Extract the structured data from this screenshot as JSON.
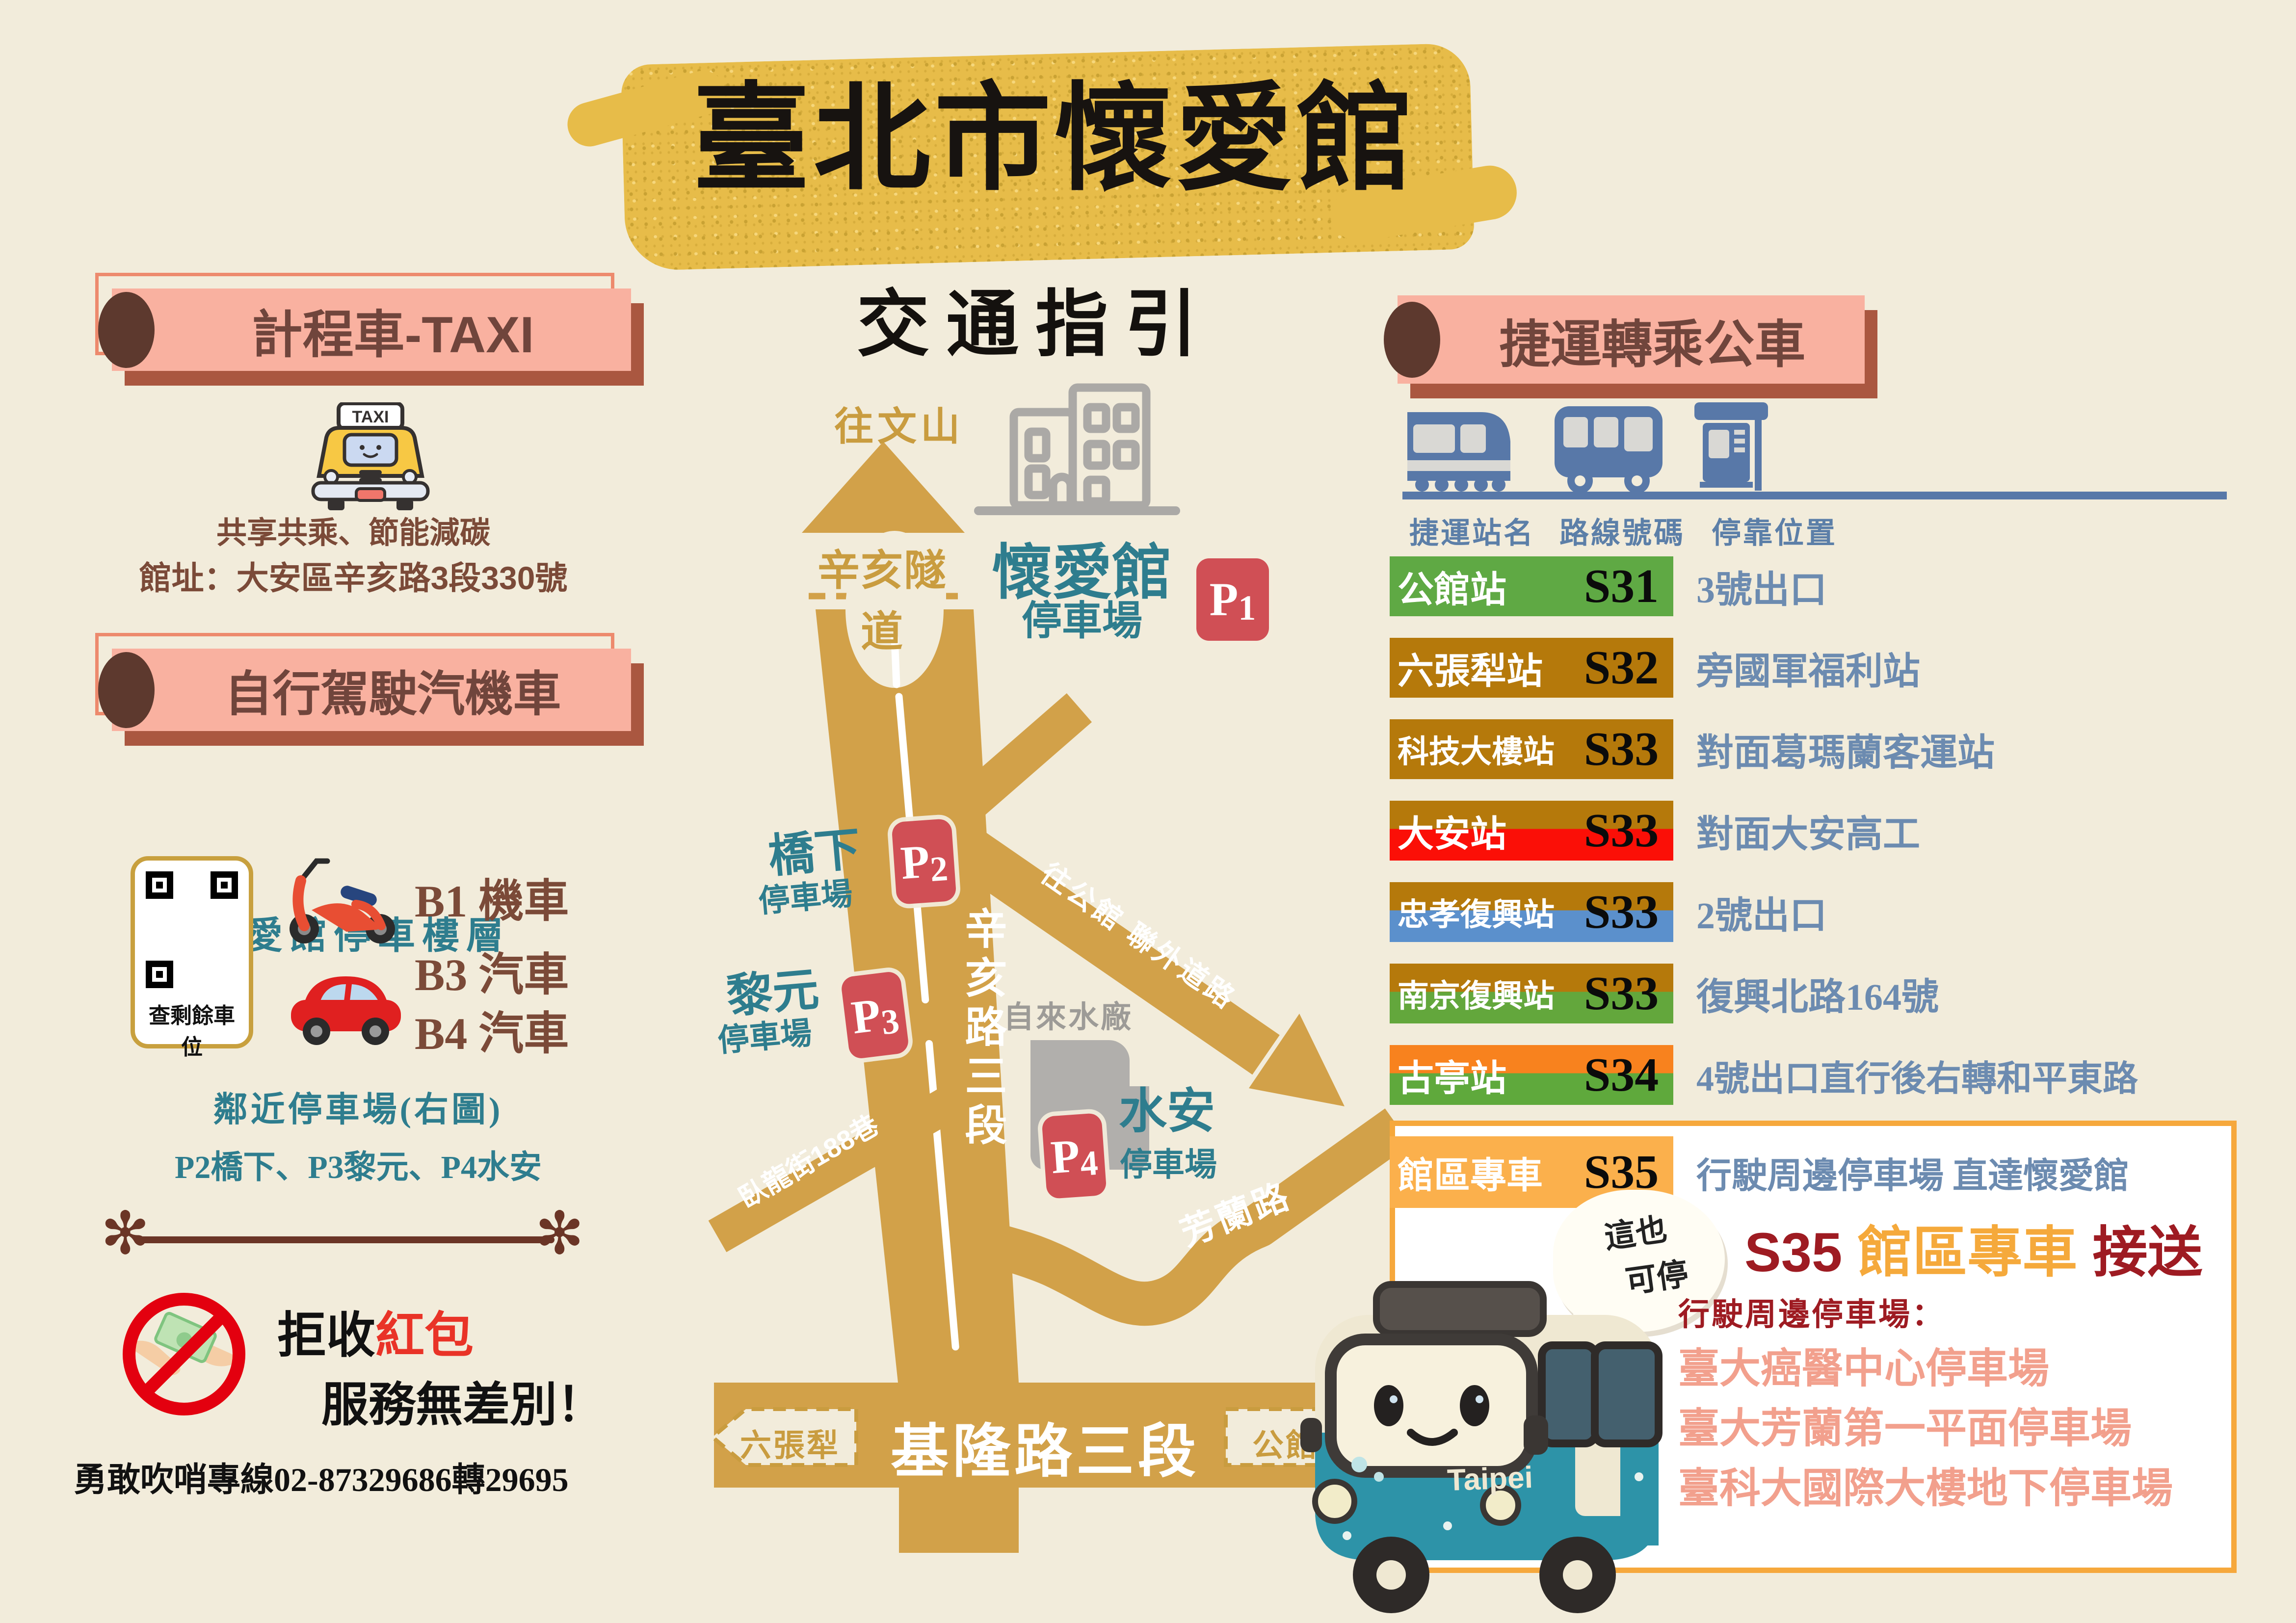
{
  "title": {
    "main": "臺北市懷愛館",
    "subtitle": "交通指引"
  },
  "taxi_section": {
    "heading": "計程車-TAXI",
    "taxi_sign": "TAXI",
    "line1": "共享共乘、節能減碳",
    "line2": "館址：大安區辛亥路3段330號"
  },
  "drive_section": {
    "heading": "自行駕駛汽機車",
    "subheading": "懷愛館停車樓層",
    "qr_caption": "查剩餘車位",
    "levels": [
      "B1 機車",
      "B3 汽車",
      "B4 汽車"
    ],
    "nearby_title": "鄰近停車場(右圖)",
    "nearby_list": "P2橋下、P3黎元、P4水安"
  },
  "integrity": {
    "line1_black": "拒收",
    "line1_red": "紅包",
    "line2": "服務無差別！",
    "hotline": "勇敢吹哨專線02-87329686轉29695"
  },
  "map": {
    "to_wenshan": "往文山",
    "tunnel": "辛亥隧道",
    "building": "懷愛館",
    "building_sub": "停車場",
    "p1": "1",
    "p2": "2",
    "p3": "3",
    "p4": "4",
    "p_letter": "P",
    "bridge": "橋下",
    "bridge_sub": "停車場",
    "liyuan": "黎元",
    "liyuan_sub": "停車場",
    "shuian": "水安",
    "shuian_sub": "停車場",
    "xinhai_rd": "辛亥路三段",
    "link_road": "往公館 聯外道路",
    "wolong": "臥龍街188巷",
    "water_plant": "自來水廠",
    "fanglan": "芳蘭路",
    "keelung_rd": "基隆路三段",
    "dir_left": "六張犁",
    "dir_right": "公館"
  },
  "mrt_section": {
    "heading": "捷運轉乘公車",
    "col_station": "捷運站名",
    "col_route": "路線號碼",
    "col_stop": "停靠位置",
    "rows": [
      {
        "station": "公館站",
        "route": "S31",
        "stop": "3號出口",
        "colors": [
          "#5FA944"
        ]
      },
      {
        "station": "六張犁站",
        "route": "S32",
        "stop": "旁國軍福利站",
        "colors": [
          "#B5790B"
        ]
      },
      {
        "station": "科技大樓站",
        "route": "S33",
        "stop": "對面葛瑪蘭客運站",
        "colors": [
          "#B5790B"
        ]
      },
      {
        "station": "大安站",
        "route": "S33",
        "stop": "對面大安高工",
        "colors": [
          "#B5790B",
          "#FB0F07"
        ]
      },
      {
        "station": "忠孝復興站",
        "route": "S33",
        "stop": "2號出口",
        "colors": [
          "#B5790B",
          "#5B90CC"
        ]
      },
      {
        "station": "南京復興站",
        "route": "S33",
        "stop": "復興北路164號",
        "colors": [
          "#B5790B",
          "#63A73C"
        ]
      },
      {
        "station": "古亭站",
        "route": "S34",
        "stop": "4號出口直行後右轉和平東路",
        "colors": [
          "#F8821E",
          "#5FA93C"
        ]
      },
      {
        "station": "館區專車",
        "route": "S35",
        "stop": "行駛周邊停車場 直達懷愛館",
        "colors": [
          "#FBB04C"
        ],
        "highlight": true
      }
    ]
  },
  "shuttle_box": {
    "bubble_line1": "這也",
    "bubble_line2": "可停",
    "head_s35": "S35",
    "head_name": "館區專車",
    "head_tail": "接送",
    "sub": "行駛周邊停車場：",
    "list": [
      "臺大癌醫中心停車場",
      "臺大芳蘭第一平面停車場",
      "臺科大國際大樓地下停車場"
    ],
    "bus_brand": "Taipei"
  },
  "colors": {
    "background": "#F2ECDB",
    "banner_pink": "#F9B1A0",
    "banner_shadow": "#AA5740",
    "banner_text": "#70453C",
    "road_gold": "#D2A149",
    "teal": "#2E7D8E",
    "badge_red": "#D04F55",
    "desc_blue": "#6C8BB0",
    "box_border": "#F6A83C",
    "dark_red": "#9E1B22",
    "salmon": "#F2A08D"
  }
}
